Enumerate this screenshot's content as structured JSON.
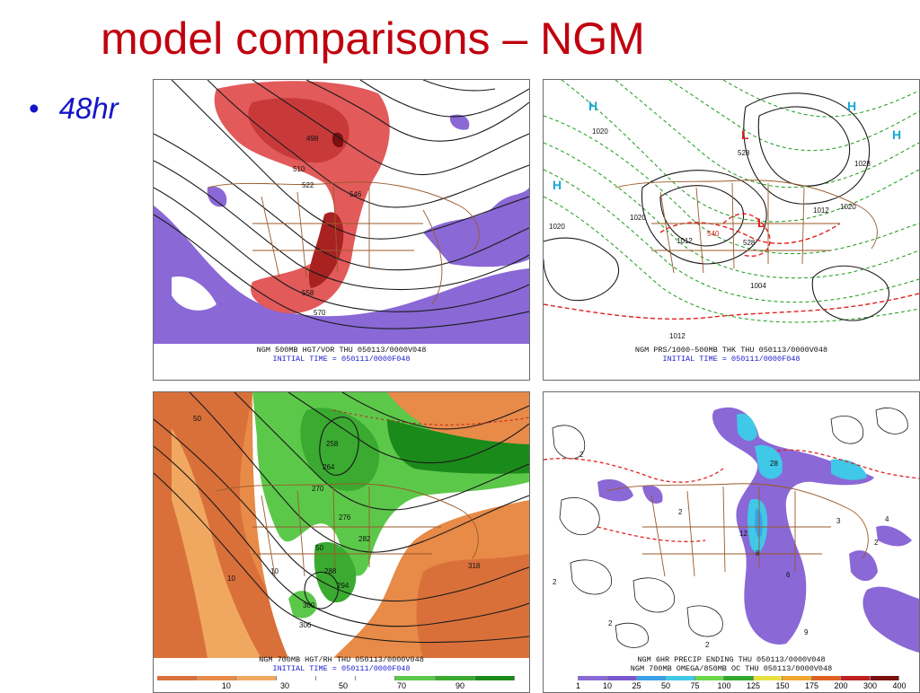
{
  "slide": {
    "title": "model comparisons – NGM",
    "bullet_marker": "•",
    "bullet_text": "48hr"
  },
  "panels": [
    {
      "id": "p1",
      "caption_1": "NGM 500MB HGT/VOR THU 050113/0000V048",
      "caption_2": "INITIAL TIME = 050111/0000F048",
      "contour_labels": [
        "498",
        "510",
        "522",
        "546",
        "558",
        "570"
      ],
      "colors": {
        "positive": "#e25a5a",
        "positive_deep": "#b02020",
        "negative": "#8a68d6"
      }
    },
    {
      "id": "p2",
      "caption_1": "NGM PRS/1000-500MB THK THU 050113/0000V048",
      "caption_2": "INITIAL TIME = 050111/0000F048",
      "high_symbol": "H",
      "low_symbol": "L",
      "contour_labels": [
        "1020",
        "1020",
        "1020",
        "1012",
        "1012",
        "1020",
        "1004",
        "1012",
        "540",
        "528",
        "528",
        "1028"
      ],
      "colors": {
        "high": "#18a8d8",
        "low": "#e02020",
        "thickness": "#1a9a1a",
        "isobar": "#222222"
      }
    },
    {
      "id": "p3",
      "caption_1": "NGM 700MB HGT/RH THU 050113/0000V048",
      "caption_2": "INITIAL TIME = 050111/0000F048",
      "contour_labels": [
        "258",
        "264",
        "270",
        "276",
        "282",
        "288",
        "294",
        "300",
        "306",
        "318",
        "50",
        "50",
        "10",
        "10"
      ],
      "colorbar_ticks": [
        "10",
        "30",
        "50",
        "70",
        "90"
      ],
      "colorbar_colors": [
        "#d9703a",
        "#e88a48",
        "#f0a860",
        "#ffffff",
        "#ffffff",
        "#ffffff",
        "#5cc84a",
        "#3aaa30",
        "#1a8a1a"
      ]
    },
    {
      "id": "p4",
      "caption_1": "NGM 6HR PRECIP ENDING THU 050113/0000V048",
      "caption_2": "NGM 700MB OMEGA/850MB OC THU 050113/0000V048",
      "contour_labels": [
        "2",
        "2",
        "2",
        "2",
        "2",
        "2",
        "4",
        "6",
        "8",
        "9",
        "12",
        "28",
        "3"
      ],
      "colorbar_ticks": [
        "1",
        "10",
        "25",
        "50",
        "75",
        "100",
        "125",
        "150",
        "175",
        "200",
        "300",
        "400"
      ],
      "colorbar_colors": [
        "#ffffff",
        "#8a68d6",
        "#7a58cc",
        "#3aa0e8",
        "#40c8e8",
        "#6ad84a",
        "#30a830",
        "#e8e040",
        "#f0a830",
        "#e06020",
        "#c02020",
        "#7a1010"
      ]
    }
  ]
}
